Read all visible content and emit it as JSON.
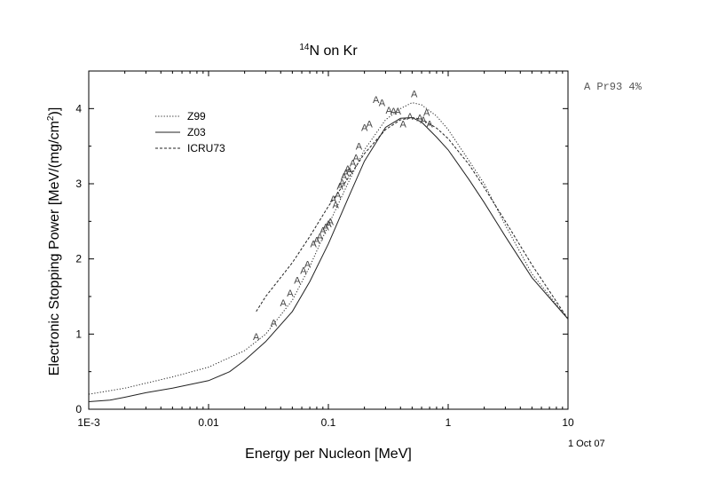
{
  "chart_data": {
    "type": "line",
    "title_main": "N on Kr",
    "title_sup": "14",
    "xlabel": "Energy per Nucleon [MeV]",
    "ylabel_main": "Electronic Stopping Power [MeV/(mg/cm",
    "ylabel_sup": "2",
    "ylabel_end": ")]",
    "x_scale": "log",
    "xlim": [
      0.001,
      10
    ],
    "ylim": [
      0,
      4.5
    ],
    "x_ticks": [
      {
        "value": 0.001,
        "label": "1E-3"
      },
      {
        "value": 0.01,
        "label": "0.01"
      },
      {
        "value": 0.1,
        "label": "0.1"
      },
      {
        "value": 1,
        "label": "1"
      },
      {
        "value": 10,
        "label": "10"
      }
    ],
    "y_ticks": [
      {
        "value": 0,
        "label": "0"
      },
      {
        "value": 1,
        "label": "1"
      },
      {
        "value": 2,
        "label": "2"
      },
      {
        "value": 3,
        "label": "3"
      },
      {
        "value": 4,
        "label": "4"
      }
    ],
    "legend_position": "top-left",
    "series": [
      {
        "name": "Z99",
        "style": "dotted",
        "points": [
          [
            0.001,
            0.2
          ],
          [
            0.002,
            0.28
          ],
          [
            0.005,
            0.43
          ],
          [
            0.01,
            0.56
          ],
          [
            0.02,
            0.78
          ],
          [
            0.03,
            1.0
          ],
          [
            0.05,
            1.45
          ],
          [
            0.07,
            1.9
          ],
          [
            0.1,
            2.45
          ],
          [
            0.15,
            3.05
          ],
          [
            0.2,
            3.45
          ],
          [
            0.3,
            3.85
          ],
          [
            0.4,
            4.0
          ],
          [
            0.5,
            4.08
          ],
          [
            0.6,
            4.05
          ],
          [
            0.8,
            3.9
          ],
          [
            1.0,
            3.72
          ],
          [
            1.5,
            3.3
          ],
          [
            2.0,
            3.0
          ],
          [
            3.0,
            2.45
          ],
          [
            5.0,
            1.8
          ],
          [
            10.0,
            1.2
          ]
        ]
      },
      {
        "name": "Z03",
        "style": "solid",
        "points": [
          [
            0.001,
            0.1
          ],
          [
            0.0015,
            0.12
          ],
          [
            0.002,
            0.16
          ],
          [
            0.003,
            0.22
          ],
          [
            0.005,
            0.28
          ],
          [
            0.01,
            0.38
          ],
          [
            0.015,
            0.5
          ],
          [
            0.02,
            0.65
          ],
          [
            0.03,
            0.9
          ],
          [
            0.05,
            1.3
          ],
          [
            0.07,
            1.7
          ],
          [
            0.1,
            2.2
          ],
          [
            0.15,
            2.85
          ],
          [
            0.2,
            3.3
          ],
          [
            0.3,
            3.75
          ],
          [
            0.4,
            3.87
          ],
          [
            0.5,
            3.88
          ],
          [
            0.6,
            3.82
          ],
          [
            0.8,
            3.62
          ],
          [
            1.0,
            3.45
          ],
          [
            1.5,
            3.05
          ],
          [
            2.0,
            2.75
          ],
          [
            3.0,
            2.3
          ],
          [
            5.0,
            1.75
          ],
          [
            10.0,
            1.2
          ]
        ]
      },
      {
        "name": "ICRU73",
        "style": "dashed",
        "points": [
          [
            0.025,
            1.3
          ],
          [
            0.03,
            1.5
          ],
          [
            0.05,
            1.95
          ],
          [
            0.07,
            2.3
          ],
          [
            0.1,
            2.7
          ],
          [
            0.15,
            3.1
          ],
          [
            0.2,
            3.4
          ],
          [
            0.3,
            3.72
          ],
          [
            0.4,
            3.85
          ],
          [
            0.5,
            3.88
          ],
          [
            0.6,
            3.86
          ],
          [
            0.8,
            3.74
          ],
          [
            1.0,
            3.6
          ],
          [
            1.5,
            3.25
          ],
          [
            2.0,
            2.95
          ],
          [
            3.0,
            2.5
          ],
          [
            5.0,
            1.92
          ],
          [
            10.0,
            1.2
          ]
        ]
      }
    ],
    "markers": {
      "name": "A Pr93 4%",
      "symbol": "A",
      "points": [
        [
          0.025,
          0.97
        ],
        [
          0.035,
          1.15
        ],
        [
          0.042,
          1.42
        ],
        [
          0.048,
          1.55
        ],
        [
          0.055,
          1.72
        ],
        [
          0.062,
          1.85
        ],
        [
          0.067,
          1.93
        ],
        [
          0.075,
          2.2
        ],
        [
          0.08,
          2.25
        ],
        [
          0.085,
          2.3
        ],
        [
          0.09,
          2.38
        ],
        [
          0.095,
          2.43
        ],
        [
          0.1,
          2.47
        ],
        [
          0.104,
          2.5
        ],
        [
          0.11,
          2.8
        ],
        [
          0.115,
          2.72
        ],
        [
          0.12,
          2.85
        ],
        [
          0.125,
          2.97
        ],
        [
          0.13,
          3.02
        ],
        [
          0.135,
          3.1
        ],
        [
          0.14,
          3.15
        ],
        [
          0.145,
          3.2
        ],
        [
          0.15,
          3.18
        ],
        [
          0.16,
          3.28
        ],
        [
          0.17,
          3.35
        ],
        [
          0.18,
          3.5
        ],
        [
          0.2,
          3.75
        ],
        [
          0.22,
          3.8
        ],
        [
          0.25,
          4.12
        ],
        [
          0.28,
          4.08
        ],
        [
          0.32,
          3.98
        ],
        [
          0.35,
          3.97
        ],
        [
          0.38,
          3.97
        ],
        [
          0.42,
          3.8
        ],
        [
          0.48,
          3.9
        ],
        [
          0.52,
          4.2
        ],
        [
          0.58,
          3.88
        ],
        [
          0.62,
          3.85
        ],
        [
          0.66,
          3.95
        ],
        [
          0.7,
          3.8
        ]
      ]
    },
    "annotation_date": "1 Oct 07"
  }
}
